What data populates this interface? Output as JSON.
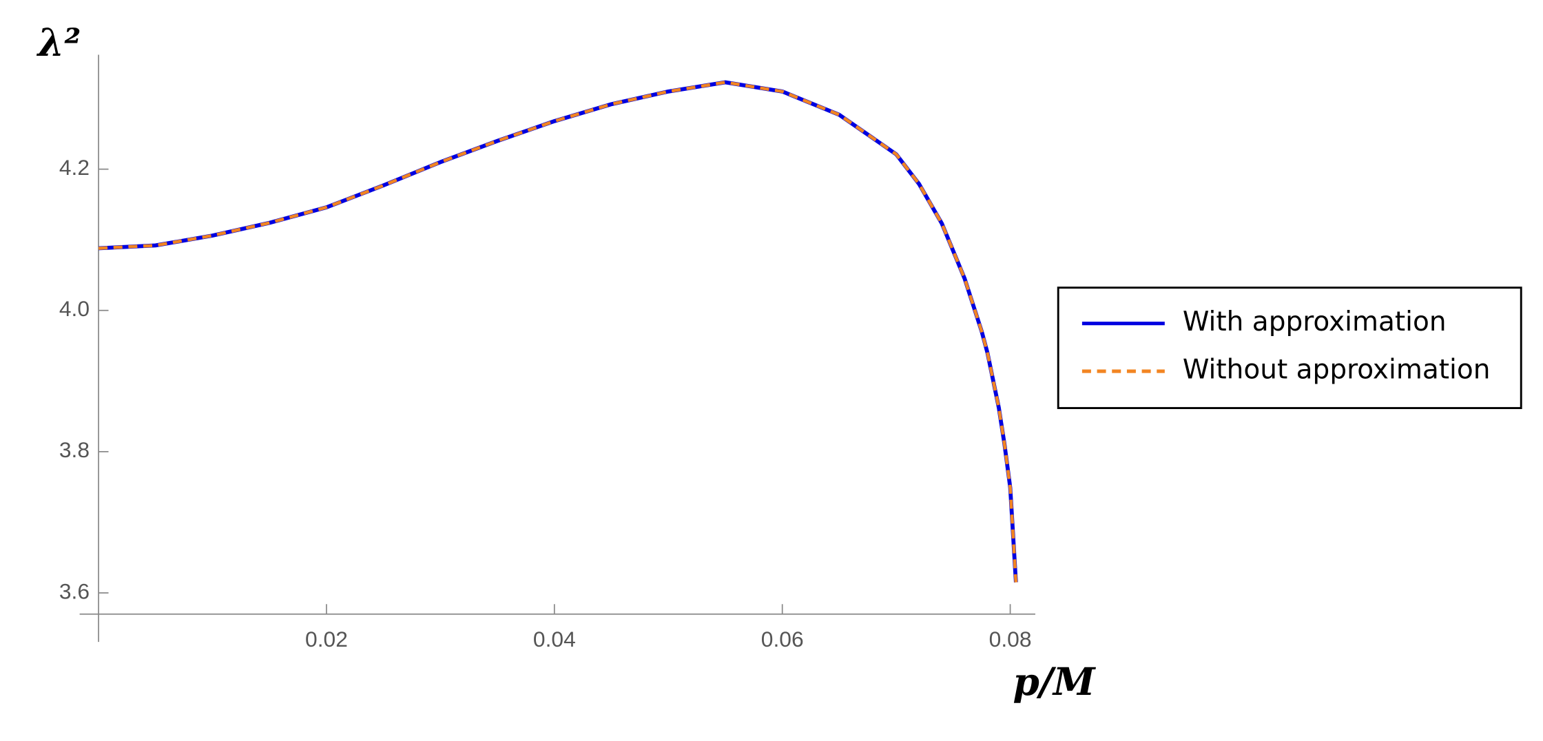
{
  "chart_data": {
    "type": "line",
    "x_label": "p/M",
    "y_label": "λ²",
    "x": [
      0,
      0.005,
      0.01,
      0.015,
      0.02,
      0.025,
      0.03,
      0.035,
      0.04,
      0.045,
      0.05,
      0.055,
      0.06,
      0.065,
      0.07,
      0.072,
      0.074,
      0.076,
      0.0775,
      0.078,
      0.079,
      0.0795,
      0.08,
      0.0805
    ],
    "series": [
      {
        "name": "With approximation",
        "color": "#0000e0",
        "dash": "solid",
        "values": [
          4.088,
          4.092,
          4.106,
          4.124,
          4.146,
          4.177,
          4.21,
          4.24,
          4.268,
          4.292,
          4.31,
          4.323,
          4.31,
          4.277,
          4.221,
          4.179,
          4.123,
          4.045,
          3.97,
          3.94,
          3.862,
          3.81,
          3.749,
          3.615
        ]
      },
      {
        "name": "Without approximation",
        "color": "#f28522",
        "dash": "dashed",
        "values": [
          4.088,
          4.092,
          4.106,
          4.124,
          4.146,
          4.177,
          4.21,
          4.24,
          4.268,
          4.292,
          4.31,
          4.323,
          4.31,
          4.277,
          4.221,
          4.179,
          4.123,
          4.045,
          3.97,
          3.94,
          3.862,
          3.81,
          3.749,
          3.615
        ]
      }
    ],
    "xlim": [
      0,
      0.0822
    ],
    "ylim": [
      3.57,
      4.362
    ],
    "xticks": [
      0.02,
      0.04,
      0.06,
      0.08
    ],
    "yticks": [
      {
        "value": 3.6,
        "label": "3.6"
      },
      {
        "value": 3.8,
        "label": "3.8"
      },
      {
        "value": 4.0,
        "label": "4.0"
      },
      {
        "value": 4.2,
        "label": "4.2"
      }
    ],
    "legend": "right"
  }
}
